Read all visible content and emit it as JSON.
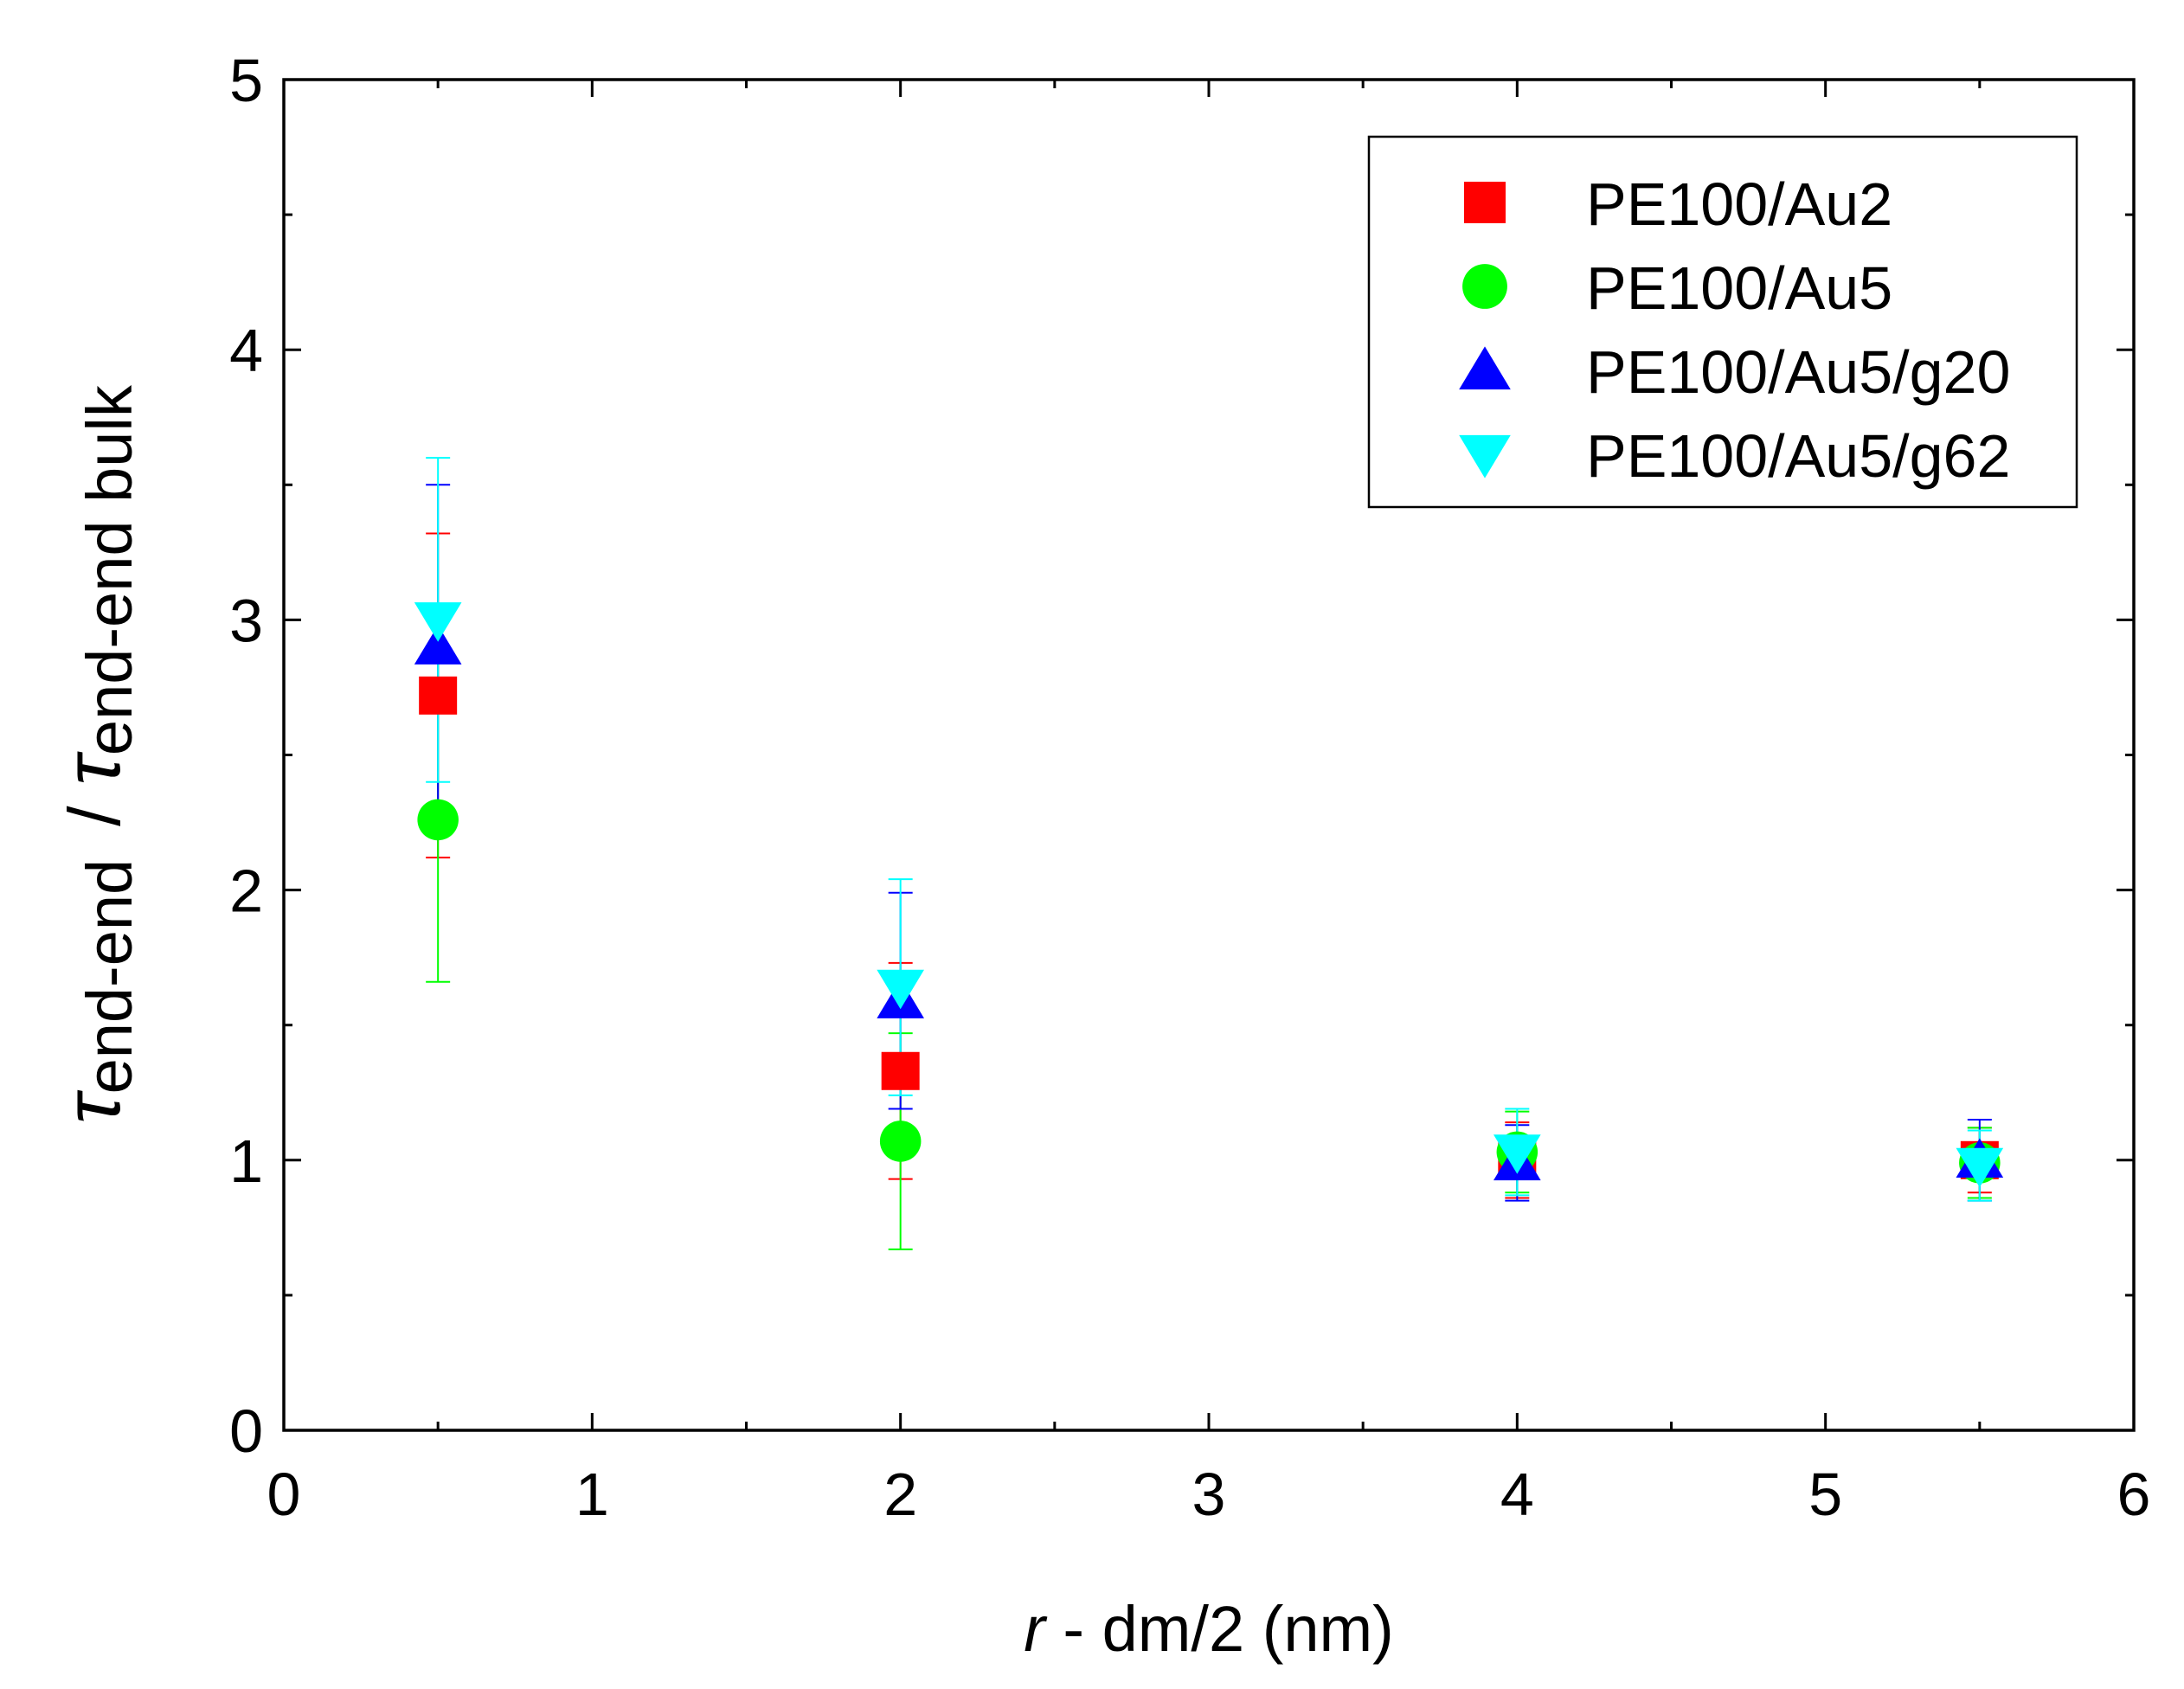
{
  "chart_data": {
    "type": "scatter",
    "title": "",
    "xlabel_var": "r",
    "xlabel_rest": " - dm/2 (nm)",
    "ylabel_num_symbol": "τ",
    "ylabel_num_sub": "end-end",
    "ylabel_slash": "/",
    "ylabel_den_symbol": "τ",
    "ylabel_den_sub": "end-end bulk",
    "xlim": [
      0,
      6
    ],
    "ylim": [
      0,
      5
    ],
    "xticks": [
      "0",
      "1",
      "2",
      "3",
      "4",
      "5",
      "6"
    ],
    "yticks": [
      "0",
      "1",
      "2",
      "3",
      "4",
      "5"
    ],
    "grid": false,
    "legend_position": "top-right",
    "series": [
      {
        "name": "PE100/Au2",
        "marker": "square",
        "color": "#ff0000",
        "x": [
          0.5,
          2.0,
          4.0,
          5.5
        ],
        "y": [
          2.72,
          1.33,
          1.0,
          1.0
        ],
        "err": [
          0.6,
          0.4,
          0.14,
          0.12
        ]
      },
      {
        "name": "PE100/Au5",
        "marker": "circle",
        "color": "#00ff00",
        "x": [
          0.5,
          2.0,
          4.0,
          5.5
        ],
        "y": [
          2.26,
          1.07,
          1.03,
          0.99
        ],
        "err": [
          0.6,
          0.4,
          0.15,
          0.13
        ]
      },
      {
        "name": "PE100/Au5/g20",
        "marker": "triangle-up",
        "color": "#0000ff",
        "x": [
          0.5,
          2.0,
          4.0,
          5.5
        ],
        "y": [
          2.9,
          1.59,
          0.99,
          1.0
        ],
        "err": [
          0.6,
          0.4,
          0.14,
          0.15
        ]
      },
      {
        "name": "PE100/Au5/g62",
        "marker": "triangle-down",
        "color": "#00ffff",
        "x": [
          0.5,
          2.0,
          4.0,
          5.5
        ],
        "y": [
          3.0,
          1.64,
          1.03,
          0.98
        ],
        "err": [
          0.6,
          0.4,
          0.16,
          0.13
        ]
      }
    ]
  }
}
